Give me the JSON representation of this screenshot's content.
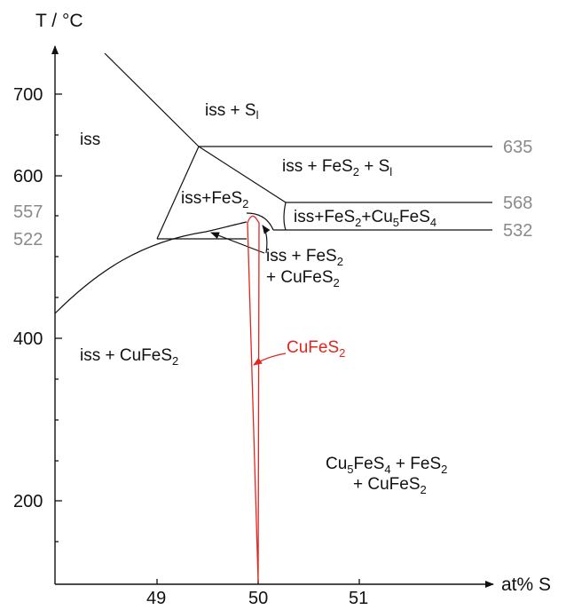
{
  "axes": {
    "y_title": "T / °C",
    "x_title": "at% S",
    "y_ticks": [
      "700",
      "600",
      "557",
      "522",
      "400",
      "200"
    ],
    "x_ticks": [
      "49",
      "50",
      "51"
    ],
    "right_temps": [
      "635",
      "568",
      "532"
    ]
  },
  "regions": {
    "iss": "iss",
    "iss_sl": {
      "main": "iss + S",
      "sub": "l"
    },
    "iss_fes2_sl": {
      "a": "iss + FeS",
      "s1": "2",
      "b": " + S",
      "s2": "l"
    },
    "iss_fes2": {
      "a": "iss+FeS",
      "s1": "2"
    },
    "iss_fes2_cu5": {
      "a": "iss+FeS",
      "s1": "2",
      "b": "+Cu",
      "s2": "5",
      "c": "FeS",
      "s3": "4"
    },
    "iss_fes2_cufes2": {
      "l1a": "iss + FeS",
      "l1s": "2",
      "l2a": "+ CuFeS",
      "l2s": "2"
    },
    "iss_cufes2": {
      "a": "iss + CuFeS",
      "s1": "2"
    },
    "cu5_fes2_cufes2": {
      "l1a": "Cu",
      "l1s1": "5",
      "l1b": "FeS",
      "l1s2": "4",
      "l1c": " + FeS",
      "l1s3": "2",
      "l2a": "+ CuFeS",
      "l2s": "2"
    }
  },
  "phase_label": {
    "a": "CuFeS",
    "s": "2"
  },
  "colors": {
    "lines": "#111111",
    "phase": "#e0261f",
    "gray_text": "#8a8a8a"
  }
}
